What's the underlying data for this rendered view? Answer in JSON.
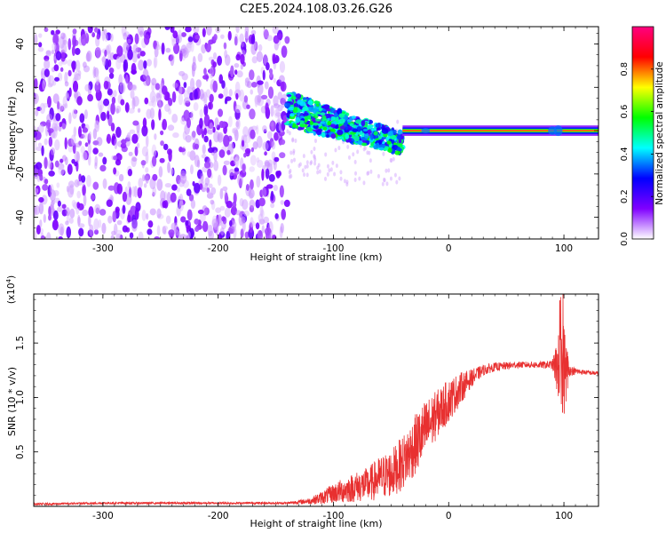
{
  "title": "C2E5.2024.108.03.26.G26",
  "chart_data": [
    {
      "type": "heatmap",
      "panel": "spectrogram",
      "xlabel": "Height of straight line (km)",
      "ylabel": "Frequency (Hz)",
      "xlim": [
        -360,
        130
      ],
      "ylim": [
        -50,
        48
      ],
      "x_ticks": [
        -300,
        -200,
        -100,
        0,
        100
      ],
      "x_tick_labels": [
        "-300",
        "-200",
        "-100",
        "0",
        "100"
      ],
      "y_ticks": [
        -40,
        -20,
        0,
        20,
        40
      ],
      "y_tick_labels": [
        "-40",
        "-20",
        "0",
        "20",
        "40"
      ],
      "colorbar": {
        "label": "Normalized spectral amplitude",
        "range": [
          0,
          1
        ],
        "ticks": [
          0.0,
          0.2,
          0.4,
          0.6,
          0.8
        ],
        "tick_labels": [
          "0.0",
          "0.2",
          "0.4",
          "0.6",
          "0.8"
        ],
        "colormap": [
          "#ffffff",
          "#8000ff",
          "#0000ff",
          "#00ffff",
          "#00ff00",
          "#ffff00",
          "#ff0000",
          "#ff0080"
        ]
      },
      "regions": [
        {
          "name": "noise",
          "x_range": [
            -360,
            -140
          ],
          "y_range": [
            -50,
            48
          ],
          "amplitude": 0.15
        },
        {
          "name": "onset",
          "x_range": [
            -140,
            -40
          ],
          "center_freq": [
            10,
            -6
          ],
          "spread_hz": 8,
          "amplitude": 0.45
        },
        {
          "name": "carrier",
          "x_range": [
            -40,
            130
          ],
          "freq": 0,
          "spread_hz": 1.5,
          "amplitude": 0.9
        }
      ]
    },
    {
      "type": "line",
      "panel": "snr",
      "xlabel": "Height of straight line (km)",
      "ylabel": "SNR (10 * v/v)",
      "scale_label": "(x10",
      "scale_exponent": "4",
      "xlim": [
        -360,
        130
      ],
      "ylim": [
        0,
        1.95
      ],
      "x_ticks": [
        -300,
        -200,
        -100,
        0,
        100
      ],
      "x_tick_labels": [
        "-300",
        "-200",
        "-100",
        "0",
        "100"
      ],
      "y_ticks": [
        0.5,
        1.0,
        1.5
      ],
      "y_tick_labels": [
        "0.5",
        "1.0",
        "1.5"
      ],
      "series": [
        {
          "color": "#e83030",
          "x": [
            -360,
            -300,
            -200,
            -140,
            -120,
            -110,
            -100,
            -90,
            -80,
            -70,
            -60,
            -50,
            -40,
            -30,
            -20,
            -10,
            0,
            10,
            20,
            30,
            40,
            60,
            80,
            90,
            95,
            100,
            105,
            110,
            120,
            130
          ],
          "y": [
            0.02,
            0.03,
            0.03,
            0.03,
            0.05,
            0.08,
            0.12,
            0.15,
            0.18,
            0.2,
            0.26,
            0.3,
            0.4,
            0.55,
            0.7,
            0.85,
            0.97,
            1.08,
            1.18,
            1.25,
            1.28,
            1.3,
            1.3,
            1.3,
            1.28,
            1.25,
            1.25,
            1.24,
            1.23,
            1.22
          ],
          "noise": [
            0.01,
            0.01,
            0.01,
            0.01,
            0.03,
            0.06,
            0.09,
            0.12,
            0.14,
            0.16,
            0.2,
            0.22,
            0.25,
            0.28,
            0.28,
            0.22,
            0.2,
            0.15,
            0.08,
            0.05,
            0.04,
            0.03,
            0.03,
            0.04,
            0.3,
            0.45,
            0.05,
            0.03,
            0.02,
            0.02
          ]
        }
      ]
    }
  ]
}
